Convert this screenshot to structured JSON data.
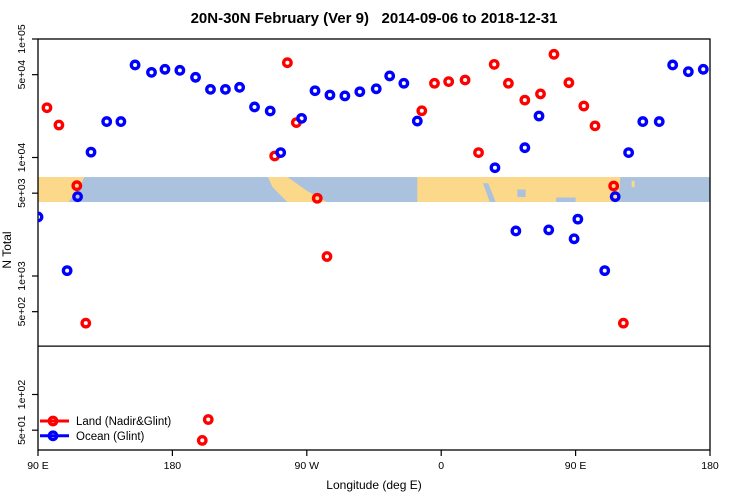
{
  "title": "20N-30N February (Ver 9)   2014-09-06 to 2018-12-31",
  "chart_data": {
    "type": "scatter",
    "title": "20N-30N February (Ver 9)   2014-09-06 to 2018-12-31",
    "xlabel": "Longitude (deg E)",
    "ylabel": "N Total",
    "x_axis": {
      "range_deg": [
        90,
        540
      ],
      "note": "longitude axis starts at 90E and wraps eastward around the globe to 180",
      "ticks": [
        {
          "deg": 90,
          "label": "90 E"
        },
        {
          "deg": 180,
          "label": "180"
        },
        {
          "deg": 270,
          "label": "90 W"
        },
        {
          "deg": 360,
          "label": "0"
        },
        {
          "deg": 450,
          "label": "90 E"
        },
        {
          "deg": 540,
          "label": "180"
        }
      ]
    },
    "y_axis": {
      "scale": "log10",
      "range": [
        33,
        100000
      ],
      "ticks": [
        {
          "n": 100000,
          "label": "1e+05"
        },
        {
          "n": 50000,
          "label": "5e+04"
        },
        {
          "n": 10000,
          "label": "1e+04"
        },
        {
          "n": 5000,
          "label": "5e+03"
        },
        {
          "n": 1000,
          "label": "1e+03"
        },
        {
          "n": 500,
          "label": "5e+02"
        },
        {
          "n": 100,
          "label": "1e+02"
        },
        {
          "n": 50,
          "label": "5e+01"
        }
      ]
    },
    "threshold_line": {
      "n": 256
    },
    "map_strip": {
      "n_top": 6840,
      "n_bottom": 4210,
      "ocean_color": "#ABC2DE",
      "land_color": "#FBD88A",
      "land_polygons": [
        [
          [
            90,
            0
          ],
          [
            121,
            0
          ],
          [
            118,
            0.4
          ],
          [
            110.5,
            1
          ],
          [
            90,
            1
          ]
        ],
        [
          [
            244,
            0
          ],
          [
            257,
            0
          ],
          [
            270,
            0.55
          ],
          [
            283.5,
            1
          ],
          [
            257,
            1
          ],
          [
            247,
            0.4
          ]
        ],
        [
          [
            344,
            0
          ],
          [
            480,
            0
          ],
          [
            478.5,
            1
          ],
          [
            344,
            1
          ]
        ],
        [
          [
            91,
            0.7
          ],
          [
            93,
            0.7
          ],
          [
            93,
            0.92
          ],
          [
            91,
            0.92
          ]
        ],
        [
          [
            487.5,
            0.15
          ],
          [
            489.5,
            0.15
          ],
          [
            489.5,
            0.4
          ],
          [
            487.5,
            0.4
          ]
        ]
      ],
      "ocean_overlays": [
        [
          [
            388,
            0.25
          ],
          [
            391.5,
            0.25
          ],
          [
            396.5,
            1
          ],
          [
            392.5,
            1
          ]
        ],
        [
          [
            411,
            0.5
          ],
          [
            416.5,
            0.5
          ],
          [
            416.5,
            0.8
          ],
          [
            411,
            0.8
          ]
        ],
        [
          [
            437,
            0.82
          ],
          [
            450,
            0.82
          ],
          [
            450,
            1
          ],
          [
            437,
            1
          ]
        ]
      ]
    },
    "legend": [
      {
        "label": "Land (Nadir&Glint)",
        "color": "#FF0000"
      },
      {
        "label": "Ocean (Glint)",
        "color": "#0000FF"
      }
    ],
    "series": [
      {
        "name": "Land (Nadir&Glint)",
        "color": "#FF0000",
        "points": [
          [
            96,
            26300
          ],
          [
            104,
            18800
          ],
          [
            116,
            5780
          ],
          [
            122,
            400
          ],
          [
            200,
            41
          ],
          [
            204,
            61.5
          ],
          [
            248.5,
            10300
          ],
          [
            257,
            63100
          ],
          [
            263,
            19700
          ],
          [
            277,
            4530
          ],
          [
            283.5,
            1460
          ],
          [
            347,
            24800
          ],
          [
            355.5,
            42300
          ],
          [
            365,
            43700
          ],
          [
            376,
            45100
          ],
          [
            385,
            11000
          ],
          [
            395.5,
            61100
          ],
          [
            405,
            42300
          ],
          [
            416,
            30500
          ],
          [
            426.5,
            34400
          ],
          [
            435.5,
            74300
          ],
          [
            445.5,
            42800
          ],
          [
            455.5,
            27200
          ],
          [
            463,
            18500
          ],
          [
            475.5,
            5750
          ],
          [
            482,
            400
          ]
        ]
      },
      {
        "name": "Ocean (Glint)",
        "color": "#0000FF",
        "points": [
          [
            90,
            3150
          ],
          [
            109.5,
            1110
          ],
          [
            116.5,
            4670
          ],
          [
            125.5,
            11100
          ],
          [
            136,
            20100
          ],
          [
            145.5,
            20100
          ],
          [
            155,
            60400
          ],
          [
            166,
            52300
          ],
          [
            175,
            55500
          ],
          [
            185,
            54400
          ],
          [
            195.5,
            47500
          ],
          [
            205.5,
            37600
          ],
          [
            215.5,
            37600
          ],
          [
            225,
            39100
          ],
          [
            235,
            26700
          ],
          [
            245.5,
            24700
          ],
          [
            252.5,
            11000
          ],
          [
            266.5,
            21400
          ],
          [
            275.5,
            36600
          ],
          [
            285.5,
            33700
          ],
          [
            295.5,
            33100
          ],
          [
            305.5,
            35900
          ],
          [
            316.5,
            38000
          ],
          [
            325.5,
            48800
          ],
          [
            335,
            42300
          ],
          [
            344,
            20300
          ],
          [
            396,
            8200
          ],
          [
            410,
            2400
          ],
          [
            416,
            12100
          ],
          [
            425.5,
            22400
          ],
          [
            432,
            2450
          ],
          [
            449,
            2060
          ],
          [
            451.5,
            3020
          ],
          [
            469.5,
            1110
          ],
          [
            476.5,
            4670
          ],
          [
            485.5,
            11000
          ],
          [
            495,
            20100
          ],
          [
            506,
            20100
          ],
          [
            515,
            60400
          ],
          [
            525.5,
            53000
          ],
          [
            535.5,
            55500
          ]
        ]
      }
    ]
  }
}
